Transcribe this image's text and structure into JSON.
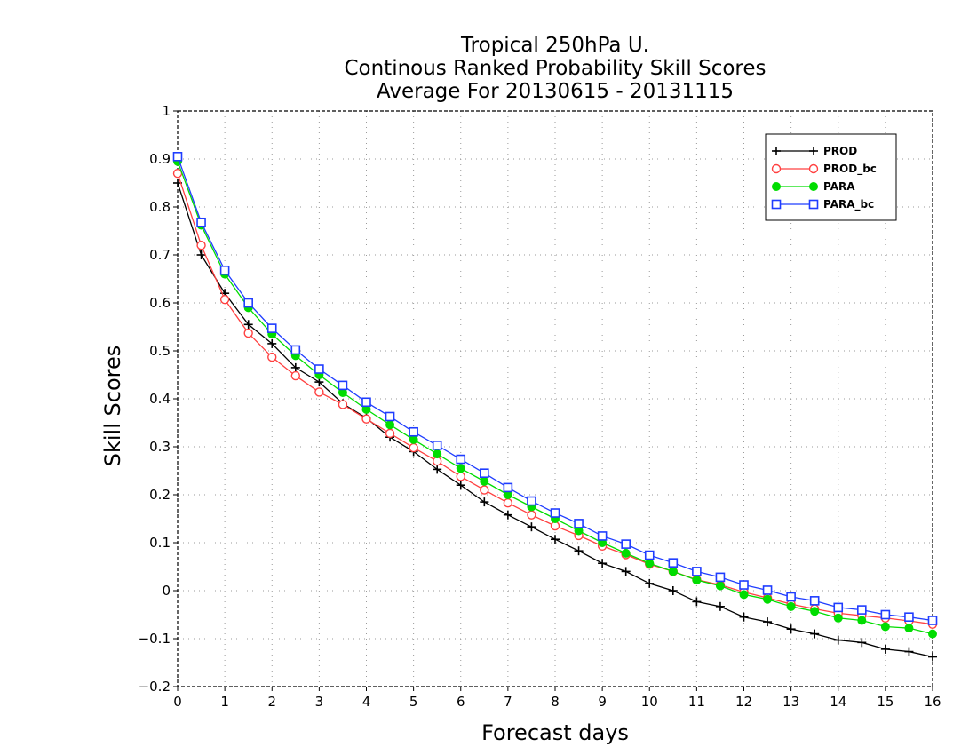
{
  "chart_data": {
    "type": "line",
    "title": [
      "Tropical 250hPa U.",
      "Continous Ranked Probability Skill Scores",
      "Average For 20130615 - 20131115"
    ],
    "xlabel": "Forecast days",
    "ylabel": "Skill Scores",
    "xlim": [
      0,
      16
    ],
    "ylim": [
      -0.2,
      1
    ],
    "xticks": [
      0,
      1,
      2,
      3,
      4,
      5,
      6,
      7,
      8,
      9,
      10,
      11,
      12,
      13,
      14,
      15,
      16
    ],
    "xtick_labels": [
      "0",
      "1",
      "2",
      "3",
      "4",
      "5",
      "6",
      "7",
      "8",
      "9",
      "10",
      "11",
      "12",
      "13",
      "14",
      "15",
      "16"
    ],
    "yticks": [
      -0.2,
      -0.1,
      0,
      0.1,
      0.2,
      0.3,
      0.4,
      0.5,
      0.6,
      0.7,
      0.8,
      0.9,
      1
    ],
    "ytick_labels": [
      "−0.2",
      "−0.1",
      "0",
      "0.1",
      "0.2",
      "0.3",
      "0.4",
      "0.5",
      "0.6",
      "0.7",
      "0.8",
      "0.9",
      "1"
    ],
    "grid": true,
    "legend_position": "top-right",
    "x": [
      0,
      0.5,
      1,
      1.5,
      2,
      2.5,
      3,
      3.5,
      4,
      4.5,
      5,
      5.5,
      6,
      6.5,
      7,
      7.5,
      8,
      8.5,
      9,
      9.5,
      10,
      10.5,
      11,
      11.5,
      12,
      12.5,
      13,
      13.5,
      14,
      14.5,
      15,
      15.5,
      16
    ],
    "series": [
      {
        "name": "PROD",
        "color": "#000000",
        "marker": "plus",
        "values": [
          0.85,
          0.7,
          0.62,
          0.555,
          0.515,
          0.465,
          0.435,
          0.39,
          0.36,
          0.32,
          0.29,
          0.253,
          0.22,
          0.185,
          0.158,
          0.133,
          0.107,
          0.083,
          0.057,
          0.04,
          0.015,
          0.0,
          -0.023,
          -0.033,
          -0.055,
          -0.065,
          -0.08,
          -0.09,
          -0.103,
          -0.108,
          -0.122,
          -0.127,
          -0.138
        ]
      },
      {
        "name": "PROD_bc",
        "color": "#ff4040",
        "marker": "open-circle",
        "values": [
          0.87,
          0.72,
          0.607,
          0.537,
          0.487,
          0.448,
          0.414,
          0.388,
          0.358,
          0.328,
          0.298,
          0.27,
          0.238,
          0.21,
          0.183,
          0.158,
          0.135,
          0.115,
          0.093,
          0.075,
          0.055,
          0.04,
          0.023,
          0.012,
          -0.003,
          -0.015,
          -0.028,
          -0.038,
          -0.047,
          -0.052,
          -0.057,
          -0.063,
          -0.07
        ]
      },
      {
        "name": "PARA",
        "color": "#00dd00",
        "marker": "filled-circle",
        "values": [
          0.895,
          0.762,
          0.66,
          0.59,
          0.535,
          0.49,
          0.45,
          0.413,
          0.378,
          0.346,
          0.315,
          0.285,
          0.255,
          0.228,
          0.2,
          0.175,
          0.15,
          0.125,
          0.1,
          0.078,
          0.057,
          0.04,
          0.022,
          0.01,
          -0.008,
          -0.018,
          -0.033,
          -0.043,
          -0.057,
          -0.062,
          -0.075,
          -0.078,
          -0.09
        ]
      },
      {
        "name": "PARA_bc",
        "color": "#1f3dff",
        "marker": "open-square",
        "values": [
          0.905,
          0.768,
          0.668,
          0.6,
          0.547,
          0.502,
          0.462,
          0.428,
          0.393,
          0.363,
          0.331,
          0.303,
          0.274,
          0.245,
          0.215,
          0.187,
          0.162,
          0.14,
          0.114,
          0.097,
          0.074,
          0.058,
          0.04,
          0.028,
          0.012,
          0.001,
          -0.013,
          -0.021,
          -0.035,
          -0.04,
          -0.05,
          -0.055,
          -0.062
        ]
      }
    ]
  }
}
